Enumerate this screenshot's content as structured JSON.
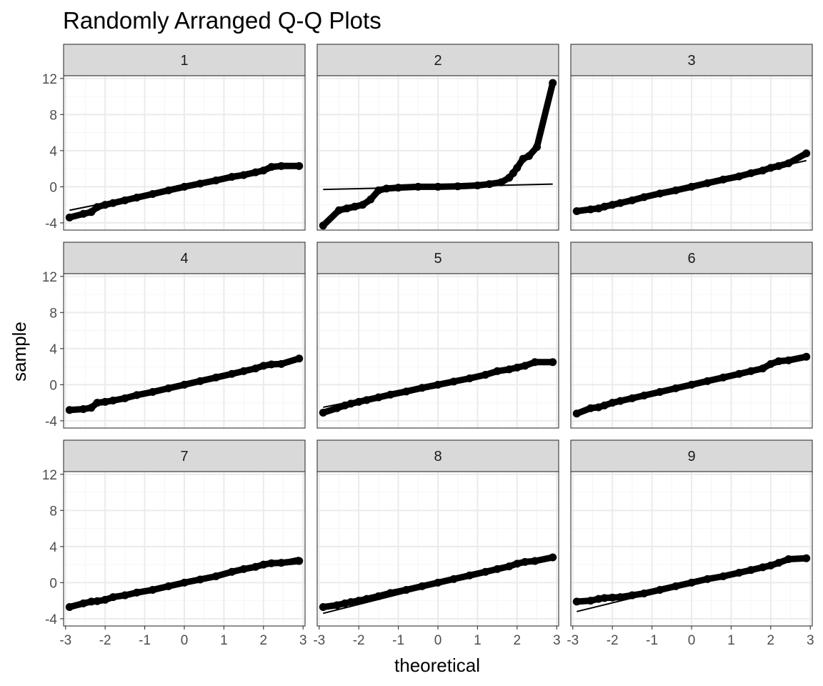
{
  "chart_data": {
    "type": "scatter",
    "title": "Randomly Arranged Q-Q Plots",
    "xlabel": "theoretical",
    "ylabel": "sample",
    "xlim": [
      -3.05,
      3.05
    ],
    "ylim": [
      -4.8,
      12.3
    ],
    "x_ticks": [
      -3,
      -2,
      -1,
      0,
      1,
      2,
      3
    ],
    "y_ticks": [
      -4,
      0,
      4,
      8,
      12
    ],
    "grid": true,
    "legend": "none",
    "colors": {
      "points": "#000000",
      "strip_fill": "#d9d9d9",
      "grid_major": "#ebebeb",
      "grid_minor": "#f5f5f5",
      "border": "#333333"
    },
    "panels": [
      {
        "label": "1",
        "line": [
          [
            -2.9,
            -2.6
          ],
          [
            2.9,
            2.5
          ]
        ],
        "points": [
          [
            -2.9,
            -3.4
          ],
          [
            -2.55,
            -3.0
          ],
          [
            -2.35,
            -2.8
          ],
          [
            -2.2,
            -2.25
          ],
          [
            -2.0,
            -2.0
          ],
          [
            -1.8,
            -1.8
          ],
          [
            -1.5,
            -1.5
          ],
          [
            -1.2,
            -1.2
          ],
          [
            -0.8,
            -0.8
          ],
          [
            -0.4,
            -0.4
          ],
          [
            0.0,
            0.0
          ],
          [
            0.4,
            0.35
          ],
          [
            0.8,
            0.7
          ],
          [
            1.2,
            1.1
          ],
          [
            1.5,
            1.3
          ],
          [
            1.8,
            1.6
          ],
          [
            2.0,
            1.8
          ],
          [
            2.2,
            2.2
          ],
          [
            2.45,
            2.3
          ],
          [
            2.9,
            2.3
          ]
        ]
      },
      {
        "label": "2",
        "line": [
          [
            -2.9,
            -0.3
          ],
          [
            2.9,
            0.3
          ]
        ],
        "points": [
          [
            -2.9,
            -4.3
          ],
          [
            -2.5,
            -2.6
          ],
          [
            -2.3,
            -2.4
          ],
          [
            -2.1,
            -2.2
          ],
          [
            -1.9,
            -2.0
          ],
          [
            -1.7,
            -1.4
          ],
          [
            -1.5,
            -0.4
          ],
          [
            -1.3,
            -0.2
          ],
          [
            -1.0,
            -0.1
          ],
          [
            -0.5,
            0.0
          ],
          [
            0.0,
            0.0
          ],
          [
            0.5,
            0.05
          ],
          [
            1.0,
            0.15
          ],
          [
            1.3,
            0.3
          ],
          [
            1.6,
            0.5
          ],
          [
            1.8,
            1.0
          ],
          [
            1.9,
            1.5
          ],
          [
            2.0,
            2.1
          ],
          [
            2.15,
            3.1
          ],
          [
            2.3,
            3.4
          ],
          [
            2.5,
            4.4
          ],
          [
            2.9,
            11.5
          ]
        ]
      },
      {
        "label": "3",
        "line": [
          [
            -2.9,
            -2.7
          ],
          [
            2.9,
            2.9
          ]
        ],
        "points": [
          [
            -2.9,
            -2.7
          ],
          [
            -2.55,
            -2.5
          ],
          [
            -2.35,
            -2.4
          ],
          [
            -2.2,
            -2.2
          ],
          [
            -2.0,
            -2.0
          ],
          [
            -1.8,
            -1.8
          ],
          [
            -1.5,
            -1.5
          ],
          [
            -1.2,
            -1.15
          ],
          [
            -0.8,
            -0.75
          ],
          [
            -0.4,
            -0.4
          ],
          [
            0.0,
            0.0
          ],
          [
            0.4,
            0.4
          ],
          [
            0.8,
            0.8
          ],
          [
            1.2,
            1.15
          ],
          [
            1.5,
            1.5
          ],
          [
            1.8,
            1.8
          ],
          [
            2.0,
            2.1
          ],
          [
            2.2,
            2.3
          ],
          [
            2.45,
            2.6
          ],
          [
            2.9,
            3.7
          ]
        ]
      },
      {
        "label": "4",
        "line": [
          [
            -2.9,
            -2.8
          ],
          [
            2.9,
            2.9
          ]
        ],
        "points": [
          [
            -2.9,
            -2.8
          ],
          [
            -2.55,
            -2.7
          ],
          [
            -2.35,
            -2.55
          ],
          [
            -2.2,
            -2.0
          ],
          [
            -2.0,
            -1.9
          ],
          [
            -1.8,
            -1.75
          ],
          [
            -1.5,
            -1.5
          ],
          [
            -1.2,
            -1.15
          ],
          [
            -0.8,
            -0.8
          ],
          [
            -0.4,
            -0.4
          ],
          [
            0.0,
            0.0
          ],
          [
            0.4,
            0.4
          ],
          [
            0.8,
            0.8
          ],
          [
            1.2,
            1.2
          ],
          [
            1.5,
            1.5
          ],
          [
            1.8,
            1.8
          ],
          [
            2.0,
            2.1
          ],
          [
            2.2,
            2.25
          ],
          [
            2.45,
            2.3
          ],
          [
            2.9,
            2.9
          ]
        ]
      },
      {
        "label": "5",
        "line": [
          [
            -2.9,
            -2.5
          ],
          [
            2.9,
            2.6
          ]
        ],
        "points": [
          [
            -2.9,
            -3.1
          ],
          [
            -2.55,
            -2.6
          ],
          [
            -2.35,
            -2.3
          ],
          [
            -2.2,
            -2.1
          ],
          [
            -2.0,
            -1.9
          ],
          [
            -1.8,
            -1.7
          ],
          [
            -1.5,
            -1.4
          ],
          [
            -1.2,
            -1.1
          ],
          [
            -0.8,
            -0.75
          ],
          [
            -0.4,
            -0.35
          ],
          [
            0.0,
            0.0
          ],
          [
            0.4,
            0.35
          ],
          [
            0.8,
            0.7
          ],
          [
            1.2,
            1.1
          ],
          [
            1.5,
            1.5
          ],
          [
            1.8,
            1.7
          ],
          [
            2.0,
            1.9
          ],
          [
            2.2,
            2.1
          ],
          [
            2.45,
            2.5
          ],
          [
            2.9,
            2.5
          ]
        ]
      },
      {
        "label": "6",
        "line": [
          [
            -2.9,
            -2.9
          ],
          [
            2.9,
            3.0
          ]
        ],
        "points": [
          [
            -2.9,
            -3.2
          ],
          [
            -2.55,
            -2.6
          ],
          [
            -2.35,
            -2.5
          ],
          [
            -2.2,
            -2.3
          ],
          [
            -2.0,
            -2.0
          ],
          [
            -1.8,
            -1.8
          ],
          [
            -1.5,
            -1.5
          ],
          [
            -1.2,
            -1.2
          ],
          [
            -0.8,
            -0.8
          ],
          [
            -0.4,
            -0.4
          ],
          [
            0.0,
            0.0
          ],
          [
            0.4,
            0.4
          ],
          [
            0.8,
            0.8
          ],
          [
            1.2,
            1.2
          ],
          [
            1.5,
            1.5
          ],
          [
            1.8,
            1.8
          ],
          [
            2.0,
            2.3
          ],
          [
            2.2,
            2.6
          ],
          [
            2.45,
            2.7
          ],
          [
            2.9,
            3.1
          ]
        ]
      },
      {
        "label": "7",
        "line": [
          [
            -2.9,
            -2.7
          ],
          [
            2.9,
            2.8
          ]
        ],
        "points": [
          [
            -2.9,
            -2.7
          ],
          [
            -2.55,
            -2.3
          ],
          [
            -2.35,
            -2.1
          ],
          [
            -2.2,
            -2.05
          ],
          [
            -2.0,
            -1.9
          ],
          [
            -1.8,
            -1.6
          ],
          [
            -1.5,
            -1.4
          ],
          [
            -1.2,
            -1.1
          ],
          [
            -0.8,
            -0.8
          ],
          [
            -0.4,
            -0.4
          ],
          [
            0.0,
            0.0
          ],
          [
            0.4,
            0.35
          ],
          [
            0.8,
            0.7
          ],
          [
            1.2,
            1.2
          ],
          [
            1.5,
            1.5
          ],
          [
            1.8,
            1.75
          ],
          [
            2.0,
            2.0
          ],
          [
            2.2,
            2.15
          ],
          [
            2.45,
            2.2
          ],
          [
            2.9,
            2.4
          ]
        ]
      },
      {
        "label": "8",
        "line": [
          [
            -2.9,
            -3.4
          ],
          [
            2.9,
            3.0
          ]
        ],
        "points": [
          [
            -2.9,
            -2.7
          ],
          [
            -2.55,
            -2.5
          ],
          [
            -2.35,
            -2.3
          ],
          [
            -2.2,
            -2.15
          ],
          [
            -2.0,
            -2.0
          ],
          [
            -1.8,
            -1.8
          ],
          [
            -1.5,
            -1.5
          ],
          [
            -1.2,
            -1.15
          ],
          [
            -0.8,
            -0.8
          ],
          [
            -0.4,
            -0.4
          ],
          [
            0.0,
            0.0
          ],
          [
            0.4,
            0.4
          ],
          [
            0.8,
            0.8
          ],
          [
            1.2,
            1.2
          ],
          [
            1.5,
            1.5
          ],
          [
            1.8,
            1.8
          ],
          [
            2.0,
            2.1
          ],
          [
            2.2,
            2.3
          ],
          [
            2.45,
            2.4
          ],
          [
            2.9,
            2.8
          ]
        ]
      },
      {
        "label": "9",
        "line": [
          [
            -2.9,
            -3.2
          ],
          [
            2.9,
            3.0
          ]
        ],
        "points": [
          [
            -2.9,
            -2.1
          ],
          [
            -2.55,
            -2.0
          ],
          [
            -2.35,
            -1.8
          ],
          [
            -2.2,
            -1.7
          ],
          [
            -2.0,
            -1.65
          ],
          [
            -1.8,
            -1.6
          ],
          [
            -1.5,
            -1.4
          ],
          [
            -1.2,
            -1.2
          ],
          [
            -0.8,
            -0.8
          ],
          [
            -0.4,
            -0.4
          ],
          [
            0.0,
            0.0
          ],
          [
            0.4,
            0.4
          ],
          [
            0.8,
            0.7
          ],
          [
            1.2,
            1.1
          ],
          [
            1.5,
            1.4
          ],
          [
            1.8,
            1.7
          ],
          [
            2.0,
            1.9
          ],
          [
            2.2,
            2.2
          ],
          [
            2.45,
            2.6
          ],
          [
            2.9,
            2.7
          ]
        ]
      }
    ]
  }
}
